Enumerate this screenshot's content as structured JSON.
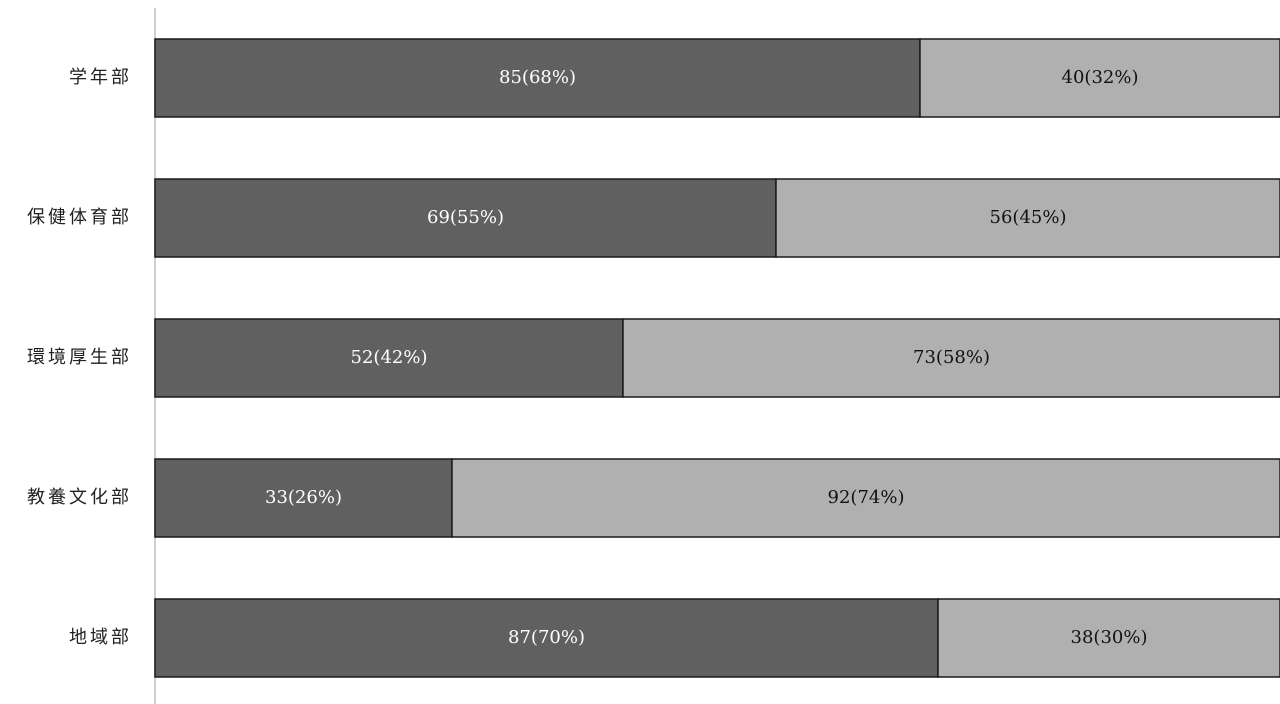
{
  "chart_data": {
    "type": "bar",
    "orientation": "horizontal",
    "stacked": "percent",
    "categories": [
      "学年部",
      "保健体育部",
      "環境厚生部",
      "教養文化部",
      "地域部"
    ],
    "series": [
      {
        "values": [
          85,
          69,
          52,
          33,
          87
        ],
        "labels": [
          "85(68%)",
          "69(55%)",
          "52(42%)",
          "33(26%)",
          "87(70%)"
        ],
        "color": "#606060"
      },
      {
        "values": [
          40,
          56,
          73,
          92,
          38
        ],
        "labels": [
          "40(32%)",
          "56(45%)",
          "73(58%)",
          "92(74%)",
          "38(30%)"
        ],
        "color": "#b0b0b0"
      }
    ],
    "grid": false,
    "legend": false
  }
}
